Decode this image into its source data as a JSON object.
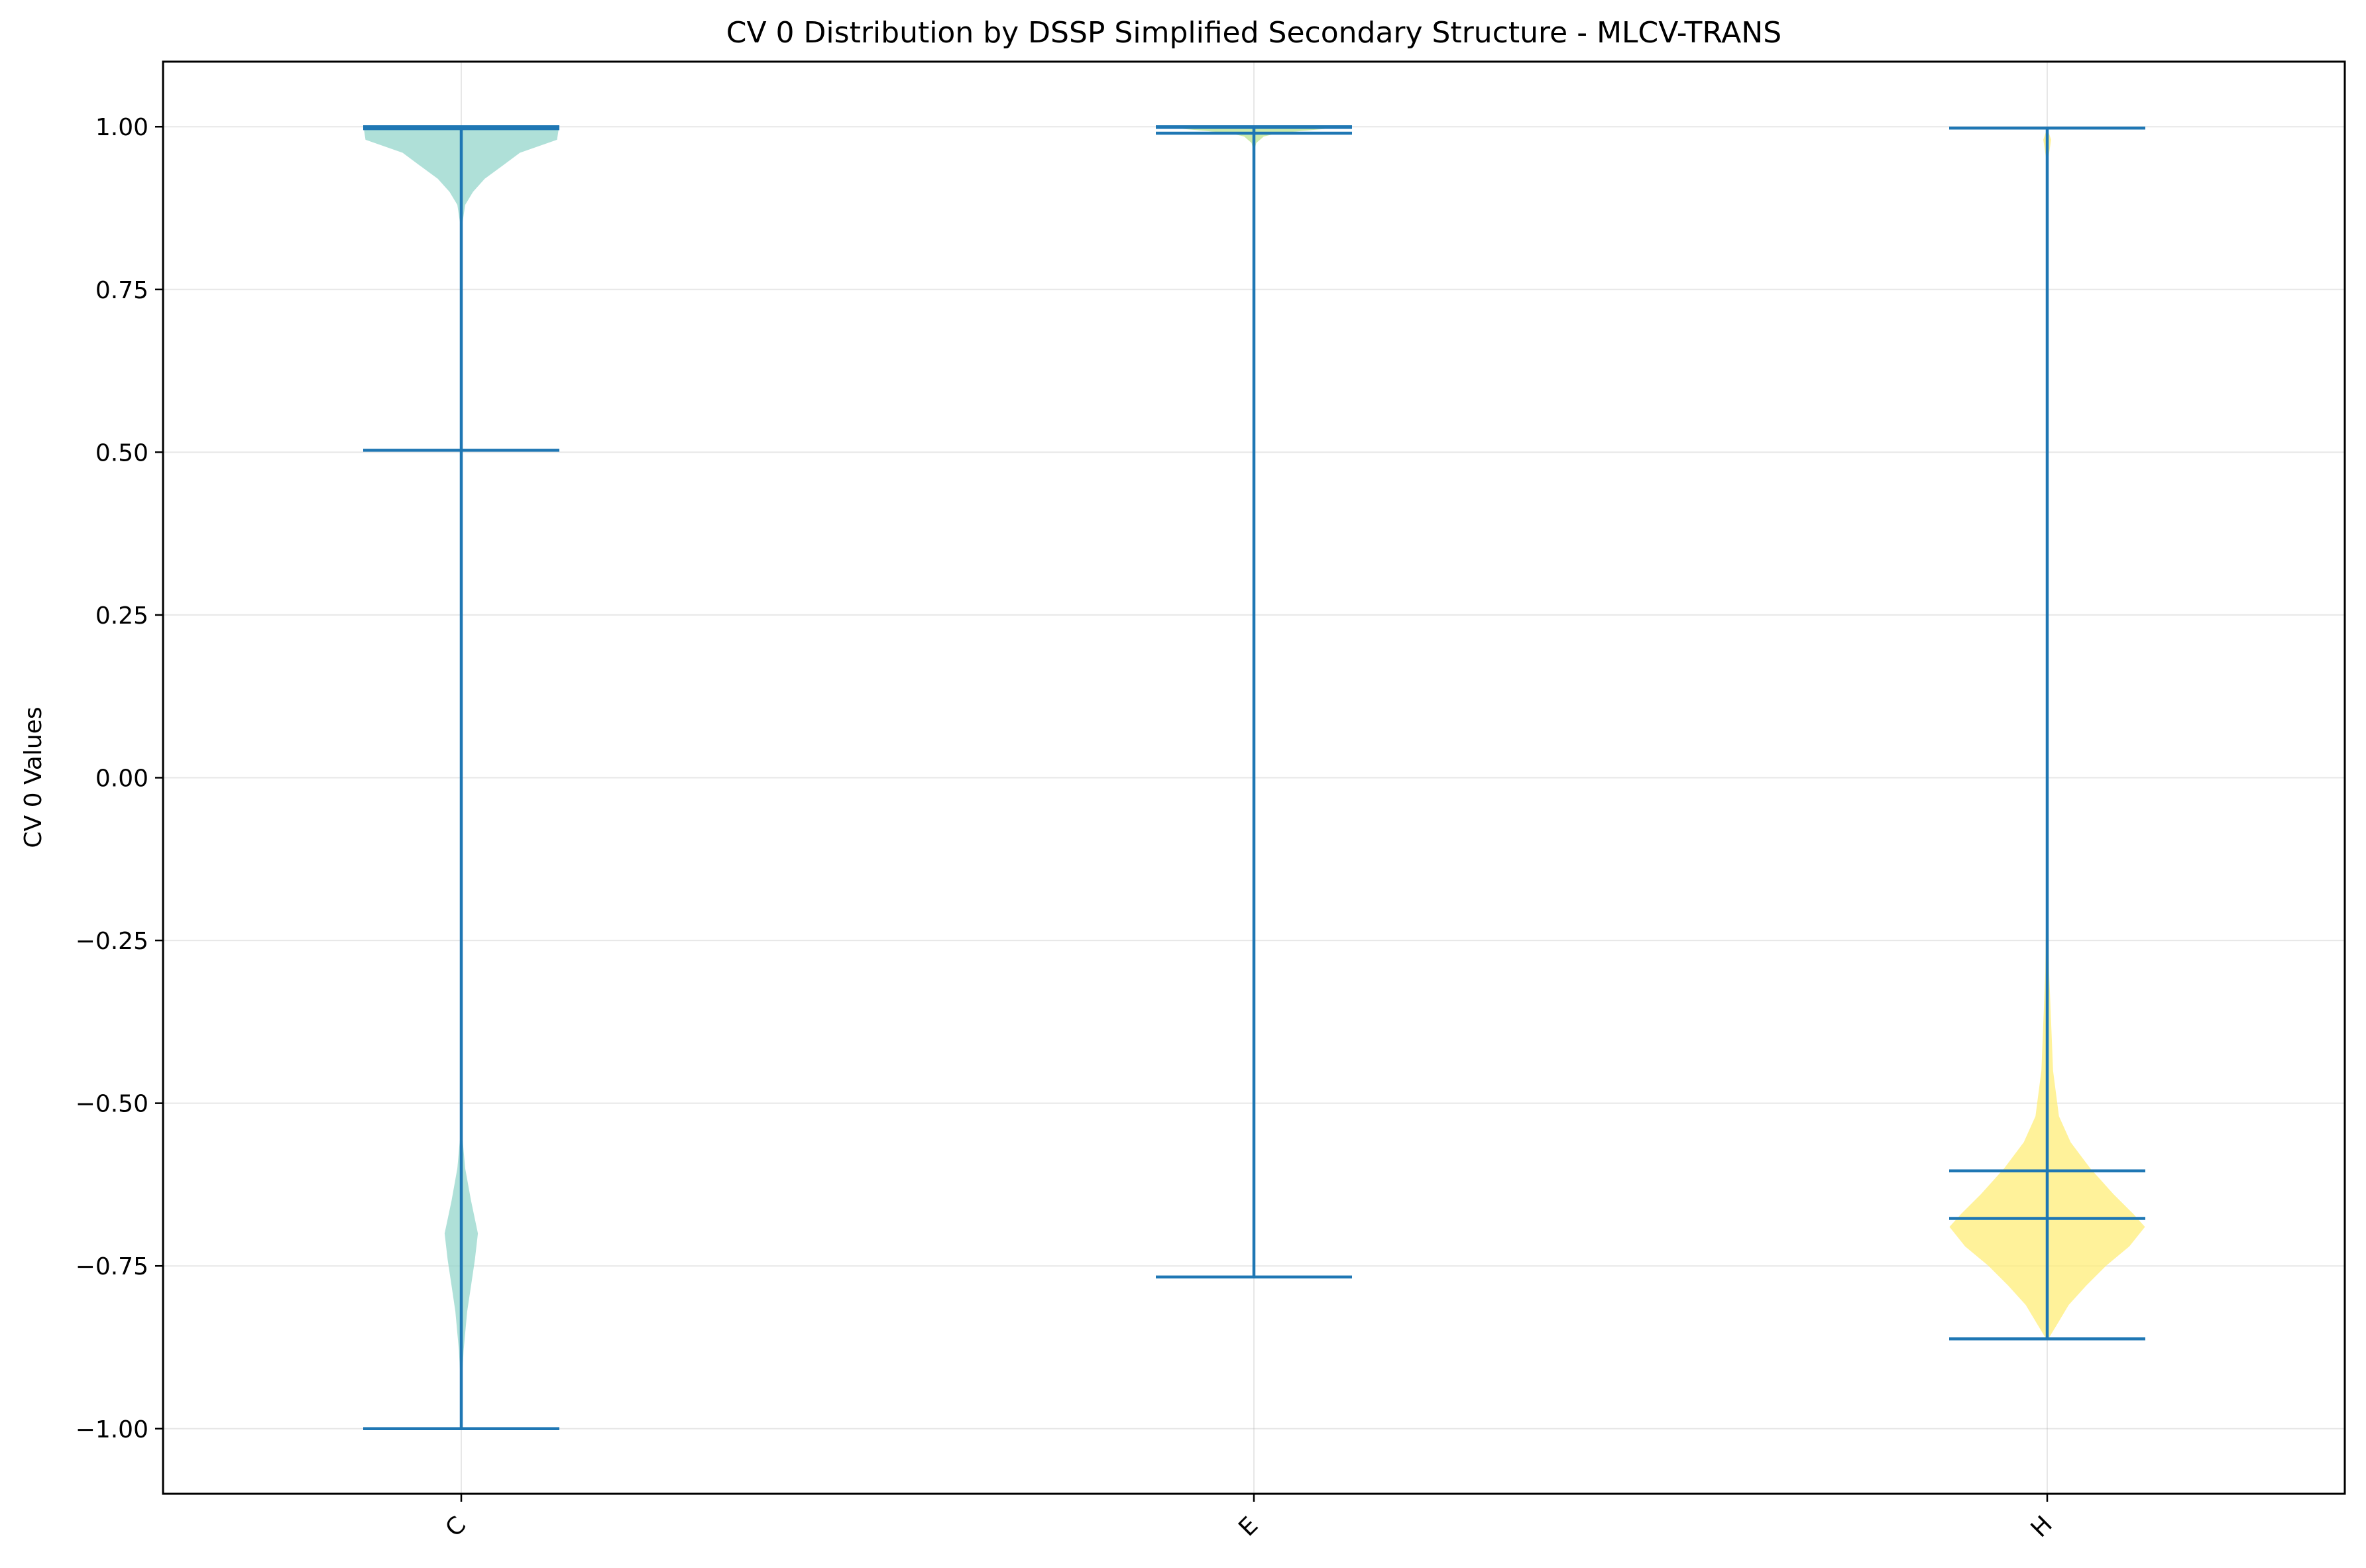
{
  "chart_data": {
    "type": "violin",
    "title": "CV 0 Distribution by DSSP Simplified Secondary Structure - MLCV-TRANS",
    "xlabel": "",
    "ylabel": "CV 0 Values",
    "ylim": [
      -1.1,
      1.1
    ],
    "yticks": [
      1.0,
      0.75,
      0.5,
      0.25,
      0.0,
      -0.25,
      -0.5,
      -0.75,
      -1.0
    ],
    "ytick_labels": [
      "1.00",
      "0.75",
      "0.50",
      "0.25",
      "0.00",
      "−0.25",
      "−0.50",
      "−0.75",
      "−1.00"
    ],
    "categories": [
      "C",
      "E",
      "H"
    ],
    "grid": true,
    "line_color": "#1f77b4",
    "violins": [
      {
        "category": "C",
        "color": "#8dd3c7",
        "min": -1.0,
        "max": 1.0,
        "mean": 0.503,
        "median": 0.997,
        "density": [
          [
            1.0,
            0.5
          ],
          [
            0.98,
            0.49
          ],
          [
            0.96,
            0.3
          ],
          [
            0.94,
            0.21
          ],
          [
            0.92,
            0.12
          ],
          [
            0.9,
            0.06
          ],
          [
            0.88,
            0.02
          ],
          [
            0.85,
            0.005
          ],
          [
            0.7,
            0.0
          ],
          [
            -0.55,
            0.005
          ],
          [
            -0.6,
            0.02
          ],
          [
            -0.65,
            0.05
          ],
          [
            -0.7,
            0.085
          ],
          [
            -0.74,
            0.07
          ],
          [
            -0.78,
            0.05
          ],
          [
            -0.82,
            0.03
          ],
          [
            -0.88,
            0.012
          ],
          [
            -0.93,
            0.003
          ],
          [
            -1.0,
            0.0
          ]
        ]
      },
      {
        "category": "E",
        "color": "#b8e186",
        "min": -0.767,
        "max": 1.0,
        "mean": 0.99,
        "median": 0.999,
        "density": [
          [
            1.0,
            0.5
          ],
          [
            0.995,
            0.3
          ],
          [
            0.99,
            0.12
          ],
          [
            0.985,
            0.05
          ],
          [
            0.975,
            0.012
          ],
          [
            0.96,
            0.0
          ],
          [
            -0.767,
            0.0
          ]
        ]
      },
      {
        "category": "H",
        "color": "#ffed6f",
        "min": -0.862,
        "max": 0.998,
        "mean": -0.604,
        "median": -0.677,
        "density": [
          [
            0.998,
            0.0
          ],
          [
            0.98,
            0.02
          ],
          [
            0.95,
            0.005
          ],
          [
            0.8,
            0.0
          ],
          [
            -0.1,
            0.001
          ],
          [
            -0.3,
            0.01
          ],
          [
            -0.45,
            0.03
          ],
          [
            -0.52,
            0.06
          ],
          [
            -0.56,
            0.12
          ],
          [
            -0.6,
            0.22
          ],
          [
            -0.64,
            0.34
          ],
          [
            -0.67,
            0.44
          ],
          [
            -0.69,
            0.5
          ],
          [
            -0.72,
            0.42
          ],
          [
            -0.75,
            0.3
          ],
          [
            -0.78,
            0.2
          ],
          [
            -0.81,
            0.11
          ],
          [
            -0.84,
            0.05
          ],
          [
            -0.86,
            0.01
          ],
          [
            -0.862,
            0.0
          ]
        ]
      }
    ]
  }
}
